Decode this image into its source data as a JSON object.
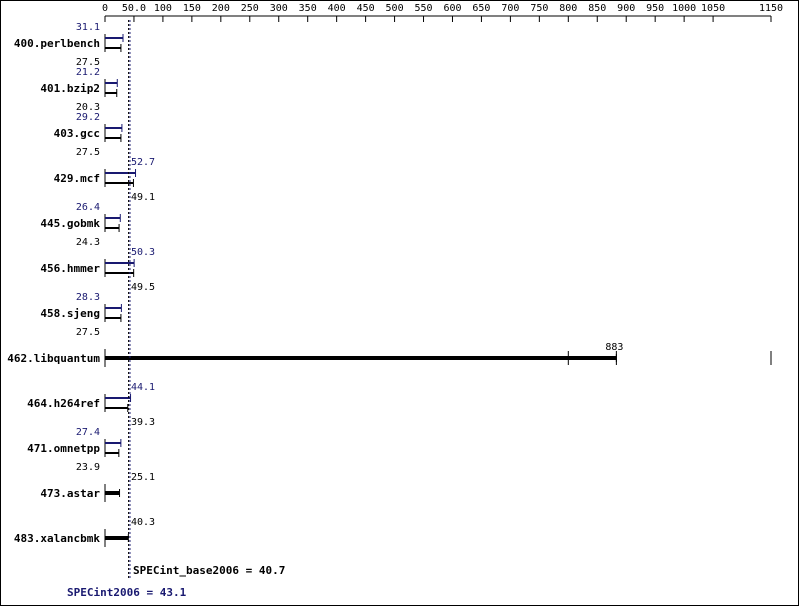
{
  "chart_data": {
    "type": "bar",
    "orientation": "horizontal",
    "x_ticks": [
      0,
      50,
      100,
      150,
      200,
      250,
      300,
      350,
      400,
      450,
      500,
      550,
      600,
      650,
      700,
      750,
      800,
      850,
      900,
      950,
      1000,
      1050,
      1150
    ],
    "x_tick_labels": [
      "0",
      "50.0",
      "100",
      "150",
      "200",
      "250",
      "300",
      "350",
      "400",
      "450",
      "500",
      "550",
      "600",
      "650",
      "700",
      "750",
      "800",
      "850",
      "900",
      "950",
      "1000",
      "1050",
      "1150"
    ],
    "xlim": [
      0,
      1150
    ],
    "grid": false,
    "categories": [
      "400.perlbench",
      "401.bzip2",
      "403.gcc",
      "429.mcf",
      "445.gobmk",
      "456.hmmer",
      "458.sjeng",
      "462.libquantum",
      "464.h264ref",
      "471.omnetpp",
      "473.astar",
      "483.xalancbmk"
    ],
    "series": [
      {
        "name": "SPECint2006",
        "color": "#191970",
        "values": [
          31.1,
          21.2,
          29.2,
          52.7,
          26.4,
          50.3,
          28.3,
          null,
          44.1,
          27.4,
          null,
          null
        ],
        "labels": [
          "31.1",
          "21.2",
          "29.2",
          "52.7",
          "26.4",
          "50.3",
          "28.3",
          null,
          "44.1",
          "27.4",
          null,
          null
        ]
      },
      {
        "name": "SPECint_base2006",
        "color": "#000000",
        "values": [
          27.5,
          20.3,
          27.5,
          49.1,
          24.3,
          49.5,
          27.5,
          883,
          39.3,
          23.9,
          25.1,
          40.3
        ],
        "labels": [
          "27.5",
          "20.3",
          "27.5",
          "49.1",
          "24.3",
          "49.5",
          "27.5",
          "883",
          "39.3",
          "23.9",
          "25.1",
          "40.3"
        ]
      }
    ],
    "summary": {
      "base_label": "SPECint_base2006 = 40.7",
      "base_value": 40.7,
      "peak_label": "SPECint2006 = 43.1",
      "peak_value": 43.1
    }
  }
}
